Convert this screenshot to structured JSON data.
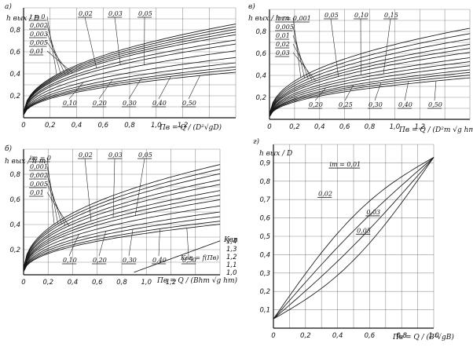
{
  "chart_data": [
    {
      "panel": "а)",
      "type": "line",
      "ylabel": "h вых / D",
      "xlabel": "Πв = Q / (D²√gD)",
      "x_ticks": [
        "0",
        "0,2",
        "0,4",
        "0,6",
        "0,8",
        "1,0",
        "1,2"
      ],
      "y_ticks": [
        "0,2",
        "0,4",
        "0,6",
        "0,8"
      ],
      "xlim": [
        0,
        1.6
      ],
      "ylim": [
        0,
        1.0
      ],
      "grid": true,
      "curve_labels": [
        "i = 0",
        "0,002",
        "0,003",
        "0,005",
        "0,01",
        "0,02",
        "0,03",
        "0,05",
        "0,10",
        "0,20",
        "0,30",
        "0,40",
        "0,50"
      ],
      "series": [
        {
          "name": "i = 0",
          "k": 0.7
        },
        {
          "name": "0,002",
          "k": 0.68
        },
        {
          "name": "0,003",
          "k": 0.66
        },
        {
          "name": "0,005",
          "k": 0.64
        },
        {
          "name": "0,01",
          "k": 0.62
        },
        {
          "name": "0,02",
          "k": 0.58
        },
        {
          "name": "0,03",
          "k": 0.55
        },
        {
          "name": "0,05",
          "k": 0.5
        },
        {
          "name": "0,10",
          "k": 0.45
        },
        {
          "name": "0,20",
          "k": 0.41
        },
        {
          "name": "0,30",
          "k": 0.38
        },
        {
          "name": "0,40",
          "k": 0.36
        },
        {
          "name": "0,50",
          "k": 0.34
        }
      ]
    },
    {
      "panel": "в)",
      "type": "line",
      "ylabel": "h вых / h т",
      "xlabel": "Πв = Q / (D²т √g hт)",
      "x_ticks": [
        "0",
        "0,2",
        "0,4",
        "0,6",
        "0,8",
        "1,0",
        "1,2"
      ],
      "y_ticks": [
        "0,2",
        "0,4",
        "0,6",
        "0,8"
      ],
      "xlim": [
        0,
        1.6
      ],
      "ylim": [
        0,
        1.0
      ],
      "grid": true,
      "curve_labels": [
        "iт = 0,001",
        "0,005",
        "0,01",
        "0,02",
        "0,03",
        "0,05",
        "0,10",
        "0,15",
        "0,20",
        "0,25",
        "0,30",
        "0,40",
        "0,50"
      ],
      "series": [
        {
          "name": "iт = 0,001",
          "k": 0.68
        },
        {
          "name": "0,005",
          "k": 0.64
        },
        {
          "name": "0,01",
          "k": 0.6
        },
        {
          "name": "0,02",
          "k": 0.56
        },
        {
          "name": "0,03",
          "k": 0.53
        },
        {
          "name": "0,05",
          "k": 0.5
        },
        {
          "name": "0,10",
          "k": 0.46
        },
        {
          "name": "0,15",
          "k": 0.43
        },
        {
          "name": "0,20",
          "k": 0.4
        },
        {
          "name": "0,25",
          "k": 0.37
        },
        {
          "name": "0,30",
          "k": 0.35
        },
        {
          "name": "0,40",
          "k": 0.33
        },
        {
          "name": "0,50",
          "k": 0.31
        }
      ]
    },
    {
      "panel": "б)",
      "type": "line",
      "ylabel": "h вых / h т",
      "xlabel": "Πв = Q / (Bhт √g hт)",
      "x_ticks": [
        "0",
        "0,2",
        "0,4",
        "0,6",
        "0,8",
        "1,0",
        "1,2"
      ],
      "y_ticks": [
        "0,2",
        "0,4",
        "0,6",
        "0,8"
      ],
      "right_ticks": [
        "1,4",
        "1,3",
        "1,2",
        "1,1",
        "1,0"
      ],
      "right_label": "Kвп",
      "aux_label": "Kвп = f(Πв)",
      "xlim": [
        0,
        1.6
      ],
      "ylim": [
        0,
        1.0
      ],
      "grid": true,
      "curve_labels": [
        "iт = 0",
        "0,001",
        "0,002",
        "0,005",
        "0,01",
        "0,02",
        "0,03",
        "0,05",
        "0,10",
        "0,20",
        "0,30",
        "0,40",
        "0,50"
      ],
      "series": [
        {
          "name": "iт = 0",
          "k": 0.72
        },
        {
          "name": "0,001",
          "k": 0.69
        },
        {
          "name": "0,002",
          "k": 0.66
        },
        {
          "name": "0,005",
          "k": 0.62
        },
        {
          "name": "0,01",
          "k": 0.59
        },
        {
          "name": "0,02",
          "k": 0.55
        },
        {
          "name": "0,03",
          "k": 0.52
        },
        {
          "name": "0,05",
          "k": 0.49
        },
        {
          "name": "0,10",
          "k": 0.45
        },
        {
          "name": "0,20",
          "k": 0.41
        },
        {
          "name": "0,30",
          "k": 0.38
        },
        {
          "name": "0,40",
          "k": 0.35
        },
        {
          "name": "0,50",
          "k": 0.33
        }
      ]
    },
    {
      "panel": "г)",
      "type": "line",
      "ylabel": "h вых / D",
      "xlabel": "Πв = Q / (B²√gB)",
      "x_ticks": [
        "0",
        "0,2",
        "0,4",
        "0,6",
        "0,8",
        "1,0"
      ],
      "y_ticks": [
        "0,1",
        "0,2",
        "0,3",
        "0,4",
        "0,5",
        "0,6",
        "0,7",
        "0,8",
        "0,9"
      ],
      "xlim": [
        0,
        1.0
      ],
      "ylim": [
        0,
        1.0
      ],
      "grid": true,
      "curve_labels": [
        "iт = 0,01",
        "0,02",
        "0,03",
        "0,05"
      ],
      "series": [
        {
          "name": "iт = 0,01",
          "bend": 0.12
        },
        {
          "name": "0,02",
          "bend": 0.04
        },
        {
          "name": "0,03",
          "bend": -0.04
        },
        {
          "name": "0,05",
          "bend": -0.12
        }
      ]
    }
  ]
}
